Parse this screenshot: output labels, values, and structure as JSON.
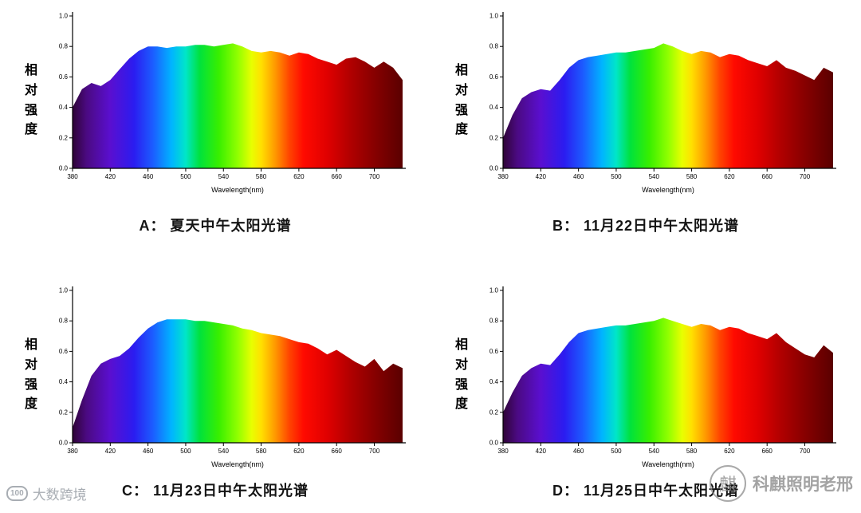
{
  "spectrum_gradient": [
    {
      "nm": 380,
      "color": "#2e0336"
    },
    {
      "nm": 395,
      "color": "#4b0a82"
    },
    {
      "nm": 420,
      "color": "#5a0fd0"
    },
    {
      "nm": 445,
      "color": "#2b1cf0"
    },
    {
      "nm": 465,
      "color": "#1c5cff"
    },
    {
      "nm": 485,
      "color": "#00b4ff"
    },
    {
      "nm": 500,
      "color": "#00e6c8"
    },
    {
      "nm": 515,
      "color": "#00e23c"
    },
    {
      "nm": 535,
      "color": "#38ef00"
    },
    {
      "nm": 555,
      "color": "#90ff00"
    },
    {
      "nm": 570,
      "color": "#e8ff00"
    },
    {
      "nm": 580,
      "color": "#ffe000"
    },
    {
      "nm": 595,
      "color": "#ff9800"
    },
    {
      "nm": 610,
      "color": "#ff4400"
    },
    {
      "nm": 625,
      "color": "#ff0a00"
    },
    {
      "nm": 650,
      "color": "#e00000"
    },
    {
      "nm": 675,
      "color": "#b00000"
    },
    {
      "nm": 700,
      "color": "#870000"
    },
    {
      "nm": 730,
      "color": "#5a0000"
    }
  ],
  "chart_data": [
    {
      "type": "area",
      "label": "A",
      "caption": "A： 夏天中午太阳光谱",
      "ylabel": "相对强度",
      "xlabel": "Wavelength(nm)",
      "x_range": [
        380,
        730
      ],
      "y_range": [
        0,
        1
      ],
      "x_ticks": [
        380,
        420,
        460,
        500,
        540,
        580,
        620,
        660,
        700
      ],
      "y_ticks": [
        0,
        0.2,
        0.4,
        0.6,
        0.8,
        1
      ],
      "x_nm": [
        380,
        390,
        400,
        410,
        420,
        430,
        440,
        450,
        460,
        470,
        480,
        490,
        500,
        510,
        520,
        530,
        540,
        550,
        560,
        570,
        580,
        590,
        600,
        610,
        620,
        630,
        640,
        650,
        660,
        670,
        680,
        690,
        700,
        710,
        720,
        730
      ],
      "relative_intensity": [
        0.4,
        0.52,
        0.56,
        0.54,
        0.58,
        0.65,
        0.72,
        0.77,
        0.8,
        0.8,
        0.79,
        0.8,
        0.8,
        0.81,
        0.81,
        0.8,
        0.81,
        0.82,
        0.8,
        0.77,
        0.76,
        0.77,
        0.76,
        0.74,
        0.76,
        0.75,
        0.72,
        0.7,
        0.68,
        0.72,
        0.73,
        0.7,
        0.66,
        0.7,
        0.66,
        0.58
      ]
    },
    {
      "type": "area",
      "label": "B",
      "caption": "B： 11月22日中午太阳光谱",
      "ylabel": "相对强度",
      "xlabel": "Wavelength(nm)",
      "x_range": [
        380,
        730
      ],
      "y_range": [
        0,
        1
      ],
      "x_ticks": [
        380,
        420,
        460,
        500,
        540,
        580,
        620,
        660,
        700
      ],
      "y_ticks": [
        0,
        0.2,
        0.4,
        0.6,
        0.8,
        1
      ],
      "x_nm": [
        380,
        390,
        400,
        410,
        420,
        430,
        440,
        450,
        460,
        470,
        480,
        490,
        500,
        510,
        520,
        530,
        540,
        550,
        560,
        570,
        580,
        590,
        600,
        610,
        620,
        630,
        640,
        650,
        660,
        670,
        680,
        690,
        700,
        710,
        720,
        730
      ],
      "relative_intensity": [
        0.2,
        0.35,
        0.46,
        0.5,
        0.52,
        0.51,
        0.58,
        0.66,
        0.71,
        0.73,
        0.74,
        0.75,
        0.76,
        0.76,
        0.77,
        0.78,
        0.79,
        0.82,
        0.8,
        0.77,
        0.75,
        0.77,
        0.76,
        0.73,
        0.75,
        0.74,
        0.71,
        0.69,
        0.67,
        0.71,
        0.66,
        0.64,
        0.61,
        0.58,
        0.66,
        0.63
      ]
    },
    {
      "type": "area",
      "label": "C",
      "caption": "C： 11月23日中午太阳光谱",
      "ylabel": "相对强度",
      "xlabel": "Wavelength(nm)",
      "x_range": [
        380,
        730
      ],
      "y_range": [
        0,
        1
      ],
      "x_ticks": [
        380,
        420,
        460,
        500,
        540,
        580,
        620,
        660,
        700
      ],
      "y_ticks": [
        0,
        0.2,
        0.4,
        0.6,
        0.8,
        1
      ],
      "x_nm": [
        380,
        390,
        400,
        410,
        420,
        430,
        440,
        450,
        460,
        470,
        480,
        490,
        500,
        510,
        520,
        530,
        540,
        550,
        560,
        570,
        580,
        590,
        600,
        610,
        620,
        630,
        640,
        650,
        660,
        670,
        680,
        690,
        700,
        710,
        720,
        730
      ],
      "relative_intensity": [
        0.1,
        0.28,
        0.44,
        0.52,
        0.55,
        0.57,
        0.62,
        0.69,
        0.75,
        0.79,
        0.81,
        0.81,
        0.81,
        0.8,
        0.8,
        0.79,
        0.78,
        0.77,
        0.75,
        0.74,
        0.72,
        0.71,
        0.7,
        0.68,
        0.66,
        0.65,
        0.62,
        0.58,
        0.61,
        0.57,
        0.53,
        0.5,
        0.55,
        0.47,
        0.52,
        0.49
      ]
    },
    {
      "type": "area",
      "label": "D",
      "caption": "D： 11月25日中午太阳光谱",
      "ylabel": "相对强度",
      "xlabel": "Wavelength(nm)",
      "x_range": [
        380,
        730
      ],
      "y_range": [
        0,
        1
      ],
      "x_ticks": [
        380,
        420,
        460,
        500,
        540,
        580,
        620,
        660,
        700
      ],
      "y_ticks": [
        0,
        0.2,
        0.4,
        0.6,
        0.8,
        1
      ],
      "x_nm": [
        380,
        390,
        400,
        410,
        420,
        430,
        440,
        450,
        460,
        470,
        480,
        490,
        500,
        510,
        520,
        530,
        540,
        550,
        560,
        570,
        580,
        590,
        600,
        610,
        620,
        630,
        640,
        650,
        660,
        670,
        680,
        690,
        700,
        710,
        720,
        730
      ],
      "relative_intensity": [
        0.2,
        0.33,
        0.44,
        0.49,
        0.52,
        0.51,
        0.58,
        0.66,
        0.72,
        0.74,
        0.75,
        0.76,
        0.77,
        0.77,
        0.78,
        0.79,
        0.8,
        0.82,
        0.8,
        0.78,
        0.76,
        0.78,
        0.77,
        0.74,
        0.76,
        0.75,
        0.72,
        0.7,
        0.68,
        0.72,
        0.66,
        0.62,
        0.58,
        0.56,
        0.64,
        0.59
      ]
    }
  ],
  "watermarks": {
    "bottom_left": {
      "icon_text": "100",
      "text": "大数跨境"
    },
    "bottom_right": {
      "icon_glyph": "麒",
      "text": "科麒照明老邢"
    }
  }
}
